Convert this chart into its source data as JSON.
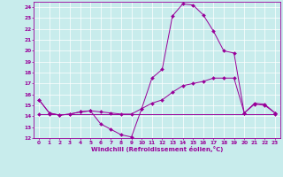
{
  "xlabel": "Windchill (Refroidissement éolien,°C)",
  "xlim": [
    -0.5,
    23.5
  ],
  "ylim": [
    12,
    24.5
  ],
  "xticks": [
    0,
    1,
    2,
    3,
    4,
    5,
    6,
    7,
    8,
    9,
    10,
    11,
    12,
    13,
    14,
    15,
    16,
    17,
    18,
    19,
    20,
    21,
    22,
    23
  ],
  "yticks": [
    12,
    13,
    14,
    15,
    16,
    17,
    18,
    19,
    20,
    21,
    22,
    23,
    24
  ],
  "color": "#990099",
  "background": "#c8ecec",
  "line1_x": [
    0,
    1,
    2,
    3,
    4,
    5,
    6,
    7,
    8,
    9,
    10,
    11,
    12,
    13,
    14,
    15,
    16,
    17,
    18,
    19,
    20,
    21,
    22,
    23
  ],
  "line1_y": [
    15.5,
    14.3,
    14.1,
    14.2,
    14.4,
    14.5,
    13.3,
    12.8,
    12.3,
    12.1,
    14.7,
    17.5,
    18.3,
    23.2,
    24.3,
    24.2,
    23.3,
    21.8,
    20.0,
    19.8,
    14.3,
    15.2,
    15.1,
    14.3
  ],
  "line2_x": [
    0,
    1,
    2,
    3,
    4,
    5,
    6,
    7,
    8,
    9,
    10,
    11,
    12,
    13,
    14,
    15,
    16,
    17,
    18,
    19,
    20,
    21,
    22,
    23
  ],
  "line2_y": [
    15.5,
    14.3,
    14.1,
    14.2,
    14.4,
    14.5,
    14.4,
    14.3,
    14.2,
    14.2,
    14.7,
    15.2,
    15.5,
    16.2,
    16.8,
    17.0,
    17.2,
    17.5,
    17.5,
    17.5,
    14.3,
    15.1,
    15.0,
    14.3
  ],
  "line3_x": [
    0,
    1,
    23
  ],
  "line3_y": [
    14.2,
    14.2,
    14.2
  ]
}
